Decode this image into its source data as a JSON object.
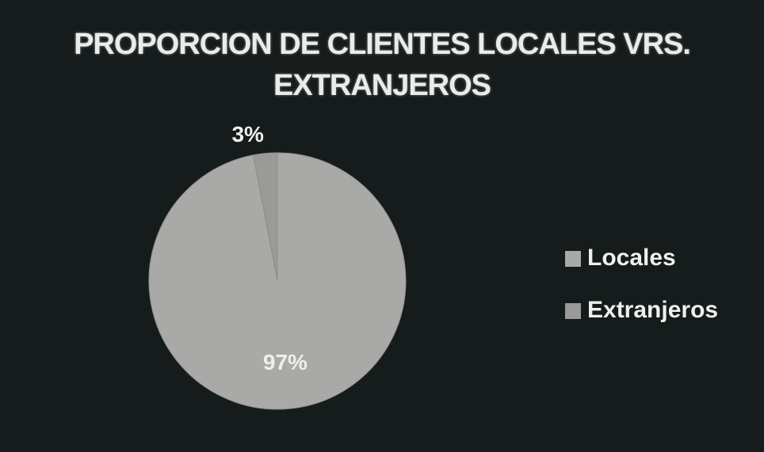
{
  "chart_data": {
    "type": "pie",
    "title": "PROPORCION DE CLIENTES LOCALES VRS. EXTRANJEROS",
    "categories": [
      "Locales",
      "Extranjeros"
    ],
    "values": [
      97,
      3
    ],
    "value_labels": [
      "97%",
      "3%"
    ],
    "colors": [
      "#a9aaa8",
      "#9a9b99"
    ],
    "legend": "right"
  }
}
